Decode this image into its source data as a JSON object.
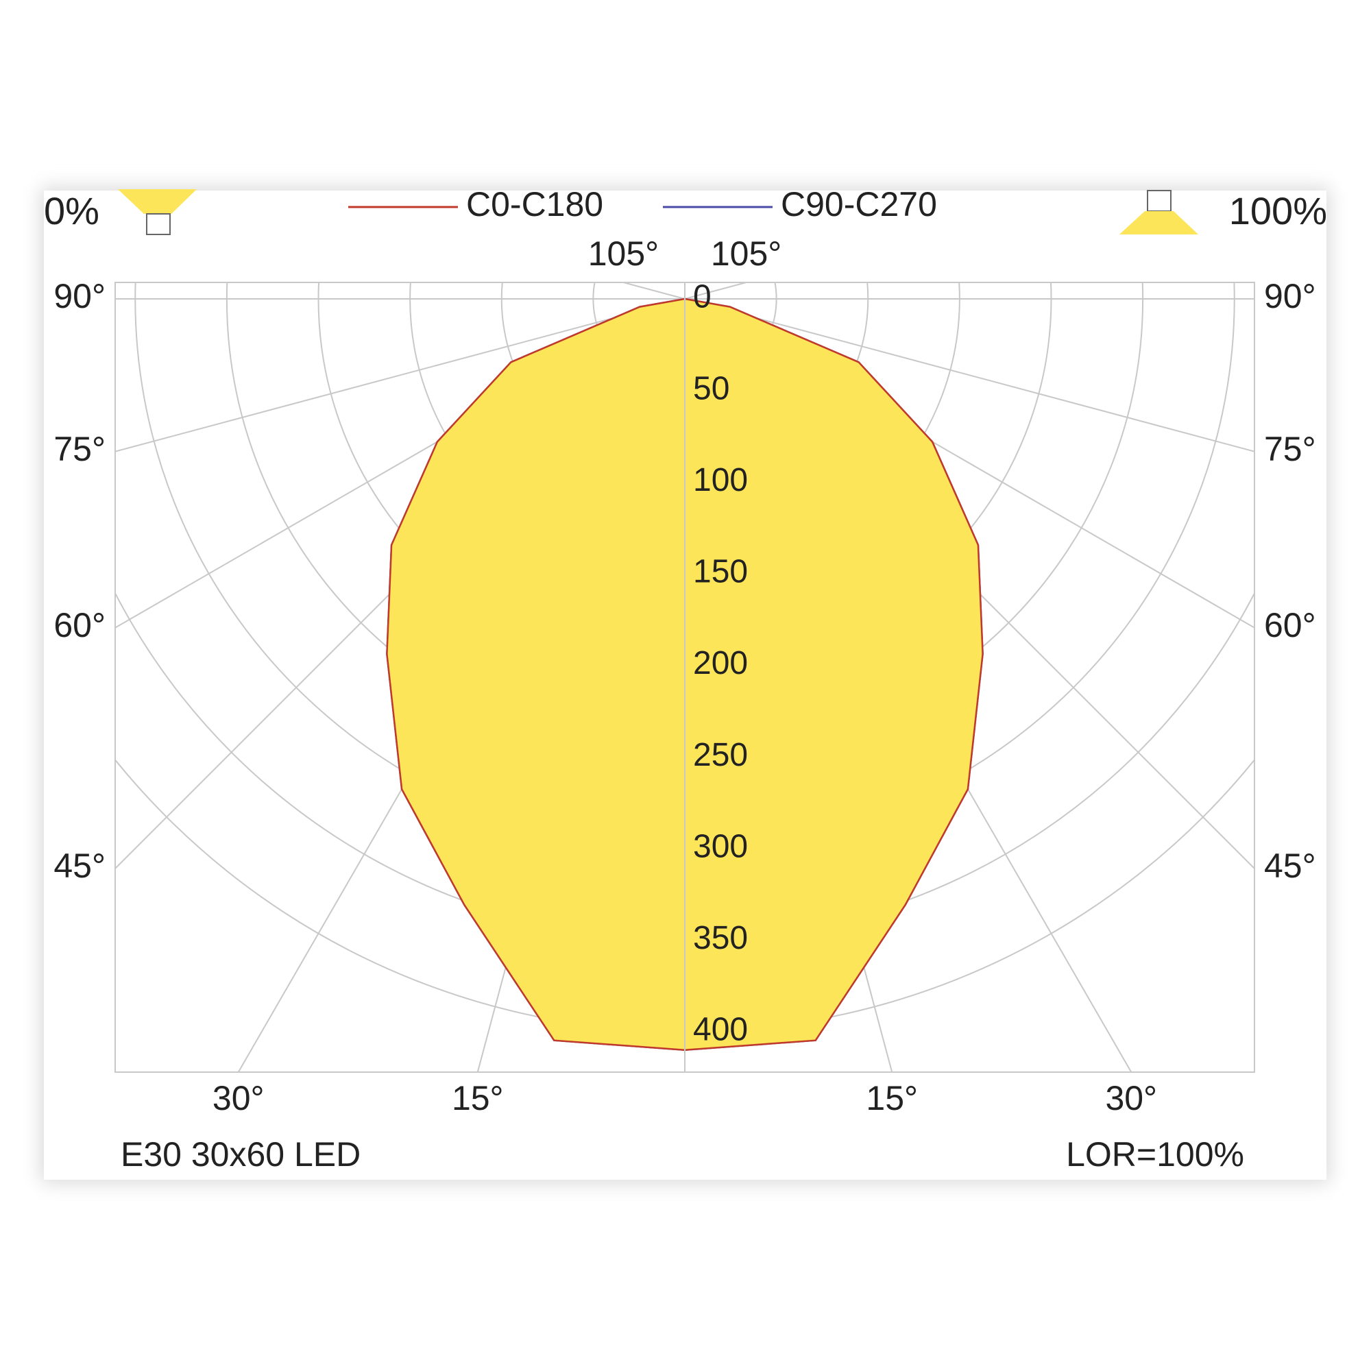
{
  "header": {
    "left": "0%",
    "right": "100%"
  },
  "chart_data": {
    "type": "polar",
    "angles": [
      0,
      10,
      20,
      30,
      40,
      50,
      60,
      70,
      80,
      90
    ],
    "series": [
      {
        "name": "C0-C180",
        "color": "#c0392b",
        "values": [
          410,
          411,
          352,
          309,
          253,
          209,
          156,
          101,
          25,
          0
        ]
      },
      {
        "name": "C90-C270",
        "color": "#4a4aa8",
        "values": [
          410,
          411,
          352,
          309,
          253,
          209,
          156,
          101,
          25,
          0
        ]
      }
    ],
    "fill_color": "#fde55a",
    "rlim": [
      0,
      400
    ],
    "rticks": [
      0,
      50,
      100,
      150,
      200,
      250,
      300,
      350,
      400
    ],
    "angle_ticks": [
      {
        "value": 15,
        "label": "15°"
      },
      {
        "value": 30,
        "label": "30°"
      },
      {
        "value": 45,
        "label": "45°"
      },
      {
        "value": 60,
        "label": "60°"
      },
      {
        "value": 75,
        "label": "75°"
      },
      {
        "value": 90,
        "label": "90°"
      },
      {
        "value": 105,
        "label": "105°"
      }
    ],
    "grid": true
  },
  "footer": {
    "left": "E30 30x60 LED",
    "right": "LOR=100%"
  }
}
